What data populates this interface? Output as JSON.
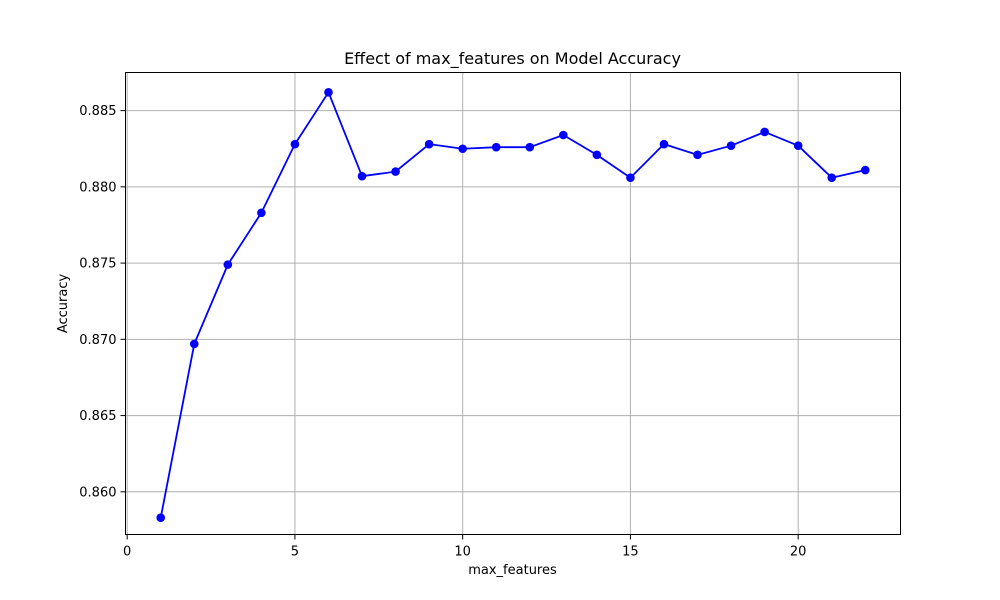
{
  "chart_data": {
    "type": "line",
    "title": "Effect of max_features on Model Accuracy",
    "xlabel": "max_features",
    "ylabel": "Accuracy",
    "xlim": [
      -0.05,
      23.05
    ],
    "ylim": [
      0.8572,
      0.8875
    ],
    "xticks": [
      0,
      5,
      10,
      15,
      20
    ],
    "yticks": [
      0.86,
      0.865,
      0.87,
      0.875,
      0.88,
      0.885
    ],
    "ytick_labels": [
      "0.860",
      "0.865",
      "0.870",
      "0.875",
      "0.880",
      "0.885"
    ],
    "grid": true,
    "color": "#0000ff",
    "marker": "circle",
    "series": [
      {
        "x": [
          1,
          2,
          3,
          4,
          5,
          6,
          7,
          8,
          9,
          10,
          11,
          12,
          13,
          14,
          15,
          16,
          17,
          18,
          19,
          20,
          21,
          22
        ],
        "values": [
          0.8583,
          0.8697,
          0.8749,
          0.8783,
          0.8828,
          0.8862,
          0.8807,
          0.881,
          0.8828,
          0.8825,
          0.8826,
          0.8826,
          0.8834,
          0.8821,
          0.8806,
          0.8828,
          0.8821,
          0.8827,
          0.8836,
          0.8827,
          0.8806,
          0.8811
        ]
      }
    ]
  }
}
